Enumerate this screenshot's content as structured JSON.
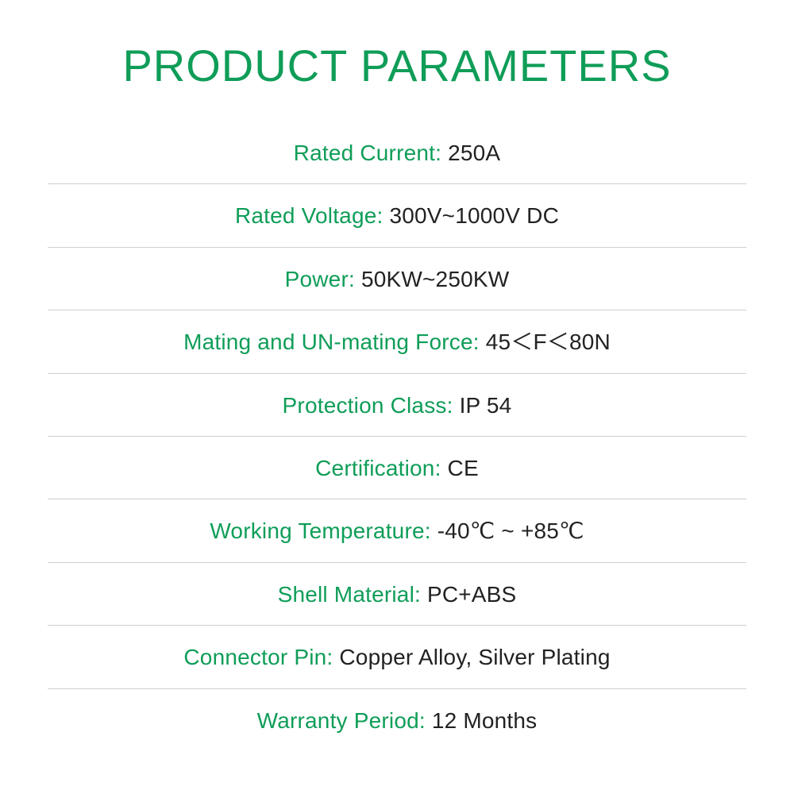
{
  "title": "PRODUCT PARAMETERS",
  "colors": {
    "accent": "#0f9d58",
    "value": "#222222",
    "divider": "#cfcfcf",
    "background": "#ffffff"
  },
  "typography": {
    "title_fontsize": 56,
    "row_fontsize": 28,
    "title_weight": 500,
    "row_weight": 400
  },
  "rows": [
    {
      "label": "Rated Current:",
      "value": "250A"
    },
    {
      "label": "Rated Voltage:",
      "value": "300V~1000V DC"
    },
    {
      "label": "Power:",
      "value": "50KW~250KW"
    },
    {
      "label": "Mating and UN-mating Force:",
      "value": "45＜F＜80N"
    },
    {
      "label": "Protection Class:",
      "value": "IP 54"
    },
    {
      "label": "Certification:",
      "value": "CE"
    },
    {
      "label": "Working Temperature:",
      "value": "-40℃ ~ +85℃"
    },
    {
      "label": "Shell Material:",
      "value": "PC+ABS"
    },
    {
      "label": "Connector Pin:",
      "value": "Copper Alloy, Silver Plating"
    },
    {
      "label": "Warranty Period:",
      "value": "12 Months"
    }
  ]
}
